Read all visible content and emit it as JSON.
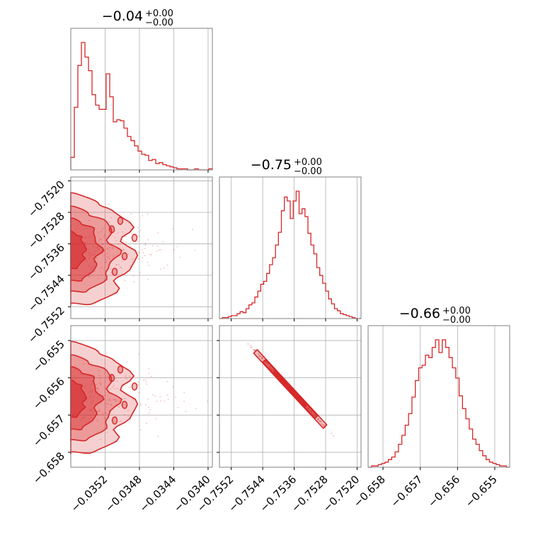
{
  "colors": {
    "accent": "#d62728",
    "grid": "#b0b0b0",
    "frame": "#808080"
  },
  "chart_data": {
    "type": "corner",
    "parameters": [
      {
        "title_value": "−0.04",
        "title_plus": "+0.00",
        "title_minus": "−0.00",
        "range": [
          -0.0356,
          -0.03395
        ],
        "ticks": [
          -0.0352,
          -0.0348,
          -0.0344,
          -0.034
        ],
        "tick_labels": [
          "−0.0352",
          "−0.0348",
          "−0.0344",
          "−0.0340"
        ]
      },
      {
        "title_value": "−0.75",
        "title_plus": "+0.00",
        "title_minus": "−0.00",
        "range": [
          -0.7555,
          -0.7519
        ],
        "ticks": [
          -0.7552,
          -0.7544,
          -0.7536,
          -0.7528,
          -0.752
        ],
        "tick_labels": [
          "−0.7552",
          "−0.7544",
          "−0.7536",
          "−0.7528",
          "−0.7520"
        ]
      },
      {
        "title_value": "−0.66",
        "title_plus": "+0.00",
        "title_minus": "−0.00",
        "range": [
          -0.6584,
          -0.6546
        ],
        "ticks": [
          -0.658,
          -0.657,
          -0.656,
          -0.655
        ],
        "tick_labels": [
          "−0.658",
          "−0.657",
          "−0.656",
          "−0.655"
        ]
      }
    ],
    "histograms": [
      {
        "param": 0,
        "edges_start": -0.0356,
        "edges_end": -0.03395,
        "counts": [
          12,
          60,
          100,
          122,
          108,
          95,
          72,
          62,
          58,
          58,
          92,
          70,
          46,
          48,
          47,
          40,
          32,
          28,
          23,
          18,
          15,
          14,
          9,
          10,
          6,
          7,
          5,
          4,
          3,
          2,
          1,
          1,
          1,
          0,
          0,
          1,
          0,
          0,
          0,
          1
        ]
      },
      {
        "param": 1,
        "edges_start": -0.7555,
        "edges_end": -0.7519,
        "counts": [
          0,
          1,
          1,
          2,
          3,
          3,
          5,
          7,
          6,
          10,
          14,
          16,
          22,
          28,
          35,
          38,
          46,
          55,
          62,
          75,
          88,
          110,
          124,
          120,
          102,
          120,
          130,
          107,
          112,
          104,
          87,
          75,
          66,
          52,
          44,
          36,
          28,
          20,
          15,
          10,
          8,
          5,
          4,
          3,
          2,
          1,
          0,
          0
        ]
      },
      {
        "param": 2,
        "edges_start": -0.6584,
        "edges_end": -0.6546,
        "counts": [
          0,
          1,
          1,
          2,
          3,
          4,
          6,
          8,
          12,
          18,
          25,
          33,
          42,
          55,
          68,
          78,
          80,
          88,
          86,
          94,
          100,
          90,
          100,
          94,
          86,
          78,
          70,
          56,
          46,
          38,
          30,
          22,
          18,
          13,
          9,
          6,
          4,
          3,
          2,
          1,
          1,
          0
        ]
      }
    ],
    "grid": true,
    "line_color": "#d62728"
  }
}
